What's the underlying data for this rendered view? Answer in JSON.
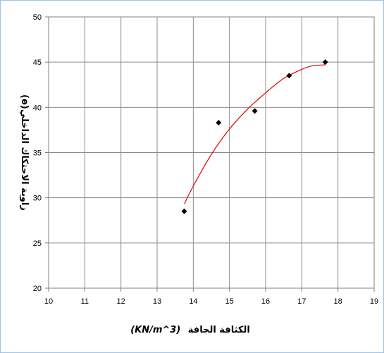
{
  "chart_data": {
    "type": "scatter",
    "xlabel": "الكثافة الجافة (KN/m^3)",
    "xlabel_text": "الكثافة الجافة",
    "xlabel_unit": "(KN/m^3)",
    "ylabel": "زاوية الاحتكاك الداخلي(ɵ)",
    "xlim": [
      10,
      19
    ],
    "ylim": [
      20,
      50
    ],
    "x_ticks": [
      10,
      11,
      12,
      13,
      14,
      15,
      16,
      17,
      18,
      19
    ],
    "y_ticks": [
      20,
      25,
      30,
      35,
      40,
      45,
      50
    ],
    "grid": true,
    "legend": "none",
    "series": [
      {
        "points": [
          {
            "x": 13.75,
            "y": 28.5
          },
          {
            "x": 14.7,
            "y": 38.3
          },
          {
            "x": 15.7,
            "y": 39.6
          },
          {
            "x": 16.65,
            "y": 43.5
          },
          {
            "x": 17.65,
            "y": 45.0
          }
        ],
        "marker_color": "#000000"
      }
    ],
    "trendline": {
      "type": "polynomial",
      "color": "#e00000",
      "points": [
        {
          "x": 13.75,
          "y": 29.3
        },
        {
          "x": 14.0,
          "y": 31.3
        },
        {
          "x": 14.5,
          "y": 34.8
        },
        {
          "x": 15.0,
          "y": 37.6
        },
        {
          "x": 15.5,
          "y": 39.8
        },
        {
          "x": 16.0,
          "y": 41.6
        },
        {
          "x": 16.5,
          "y": 43.2
        },
        {
          "x": 17.0,
          "y": 44.2
        },
        {
          "x": 17.3,
          "y": 44.6
        },
        {
          "x": 17.65,
          "y": 44.7
        }
      ]
    }
  }
}
